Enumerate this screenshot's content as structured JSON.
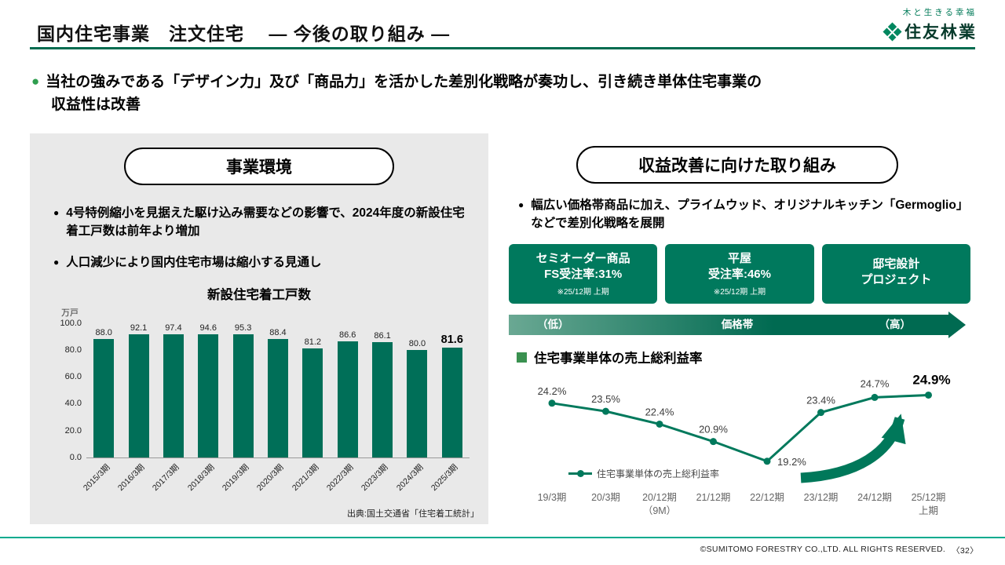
{
  "header": {
    "title": "国内住宅事業　注文住宅　 ― 今後の取り組み ―",
    "logo_tagline": "木と生きる幸福",
    "logo_name": "住友林業"
  },
  "lead": {
    "line1": "当社の強みである「デザイン力」及び「商品力」を活かした差別化戦略が奏功し、引き続き単体住宅事業の",
    "line2": "収益性は改善"
  },
  "left_panel": {
    "pill_title": "事業環境",
    "bullets": [
      "4号特例縮小を見据えた駆け込み需要などの影響で、2024年度の新設住宅着工戸数は前年より増加",
      "人口減少により国内住宅市場は縮小する見通し"
    ],
    "source": "出典:国土交通省「住宅着工統計」"
  },
  "right_panel": {
    "pill_title": "収益改善に向けた取り組み",
    "bullet": "幅広い価格帯商品に加え、プライムウッド、オリジナルキッチン「Germoglio」などで差別化戦略を展開",
    "boxes": [
      {
        "line1": "セミオーダー商品",
        "line2": "FS受注率:31%",
        "note": "※25/12期 上期"
      },
      {
        "line1": "平屋",
        "line2": "受注率:46%",
        "note": "※25/12期 上期"
      },
      {
        "line1": "邸宅設計",
        "line2": "プロジェクト",
        "note": ""
      }
    ],
    "price_axis": {
      "low": "（低）",
      "label": "価格帯",
      "high": "（高）"
    },
    "section_title": "住宅事業単体の売上総利益率"
  },
  "footer": {
    "copyright": "©SUMITOMO FORESTRY CO.,LTD. ALL RIGHTS RESERVED.",
    "page": "〈32〉"
  },
  "colors": {
    "brand_green": "#006b4f",
    "panel_gray": "#e9e9e9",
    "box_green": "#00795d",
    "bar_green": "#006f58",
    "footer_teal": "#00ab8e"
  },
  "chart_data": [
    {
      "type": "bar",
      "title": "新設住宅着工戸数",
      "unit_label": "万戸",
      "categories": [
        "2015/3期",
        "2016/3期",
        "2017/3期",
        "2018/3期",
        "2019/3期",
        "2020/3期",
        "2021/3期",
        "2022/3期",
        "2023/3期",
        "2024/3期",
        "2025/3期"
      ],
      "values": [
        88.0,
        92.1,
        97.4,
        94.6,
        95.3,
        88.4,
        81.2,
        86.6,
        86.1,
        80.0,
        81.6
      ],
      "ylim": [
        0,
        100
      ],
      "yticks": [
        0,
        20,
        40,
        60,
        80,
        100
      ],
      "grid": false,
      "legend_position": "none"
    },
    {
      "type": "line",
      "title": "住宅事業単体の売上総利益率",
      "legend": "住宅事業単体の売上総利益率",
      "unit": "%",
      "categories": [
        [
          "19/3期"
        ],
        [
          "20/3期"
        ],
        [
          "20/12期",
          "（9M）"
        ],
        [
          "21/12期"
        ],
        [
          "22/12期"
        ],
        [
          "23/12期"
        ],
        [
          "24/12期"
        ],
        [
          "25/12期",
          "上期"
        ]
      ],
      "values": [
        24.2,
        23.5,
        22.4,
        20.9,
        19.2,
        23.4,
        24.7,
        24.9
      ],
      "labels": [
        "24.2%",
        "23.5%",
        "22.4%",
        "20.9%",
        "19.2%",
        "23.4%",
        "24.7%",
        "24.9%"
      ],
      "ylim": [
        19,
        25.5
      ],
      "grid": false,
      "legend_position": "bottom-left"
    }
  ]
}
